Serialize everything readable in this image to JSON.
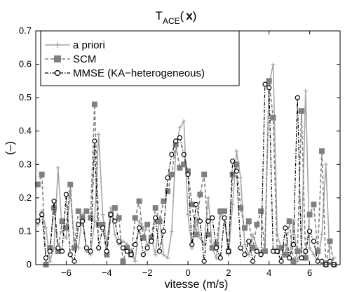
{
  "chart_data": {
    "type": "line",
    "title_main": "T",
    "title_sub": "ACE",
    "title_paren_open": "(",
    "title_var": "x",
    "title_paren_close": ")",
    "xlabel": "vitesse (m/s)",
    "ylabel": "(–)",
    "xlim": [
      -7.5,
      7.5
    ],
    "ylim": [
      0,
      0.7
    ],
    "xticks": [
      -6,
      -4,
      -2,
      0,
      2,
      4,
      6
    ],
    "xtick_labels": [
      "−6",
      "−4",
      "−2",
      "0",
      "2",
      "4",
      "6"
    ],
    "yticks": [
      0,
      0.1,
      0.2,
      0.3,
      0.4,
      0.5,
      0.6,
      0.7
    ],
    "ytick_labels": [
      "0",
      "0.1",
      "0.2",
      "0.3",
      "0.4",
      "0.5",
      "0.6",
      "0.7"
    ],
    "grid": false,
    "legend_position": "top-left",
    "series": [
      {
        "name": "a priori",
        "color": "#a6a6a6",
        "style": "solid",
        "marker": "plus",
        "x": [
          -7.4,
          -7.2,
          -7.0,
          -6.8,
          -6.6,
          -6.4,
          -6.2,
          -6.0,
          -5.8,
          -5.6,
          -5.4,
          -5.2,
          -5.0,
          -4.8,
          -4.6,
          -4.4,
          -4.2,
          -4.0,
          -3.8,
          -3.6,
          -3.4,
          -3.2,
          -3.0,
          -2.8,
          -2.6,
          -2.4,
          -2.2,
          -2.0,
          -1.8,
          -1.6,
          -1.4,
          -1.2,
          -1.0,
          -0.8,
          -0.6,
          -0.4,
          -0.2,
          0.0,
          0.2,
          0.4,
          0.6,
          0.8,
          1.0,
          1.2,
          1.4,
          1.6,
          1.8,
          2.0,
          2.2,
          2.4,
          2.6,
          2.8,
          3.0,
          3.2,
          3.4,
          3.6,
          3.8,
          4.0,
          4.2,
          4.4,
          4.6,
          4.8,
          5.0,
          5.2,
          5.4,
          5.6,
          5.8,
          6.0,
          6.2,
          6.4,
          6.6,
          6.8,
          7.0,
          7.2
        ],
        "y": [
          0.12,
          0.16,
          0.11,
          0.01,
          0.05,
          0.29,
          0.1,
          0.08,
          0.22,
          0.07,
          0.05,
          0.15,
          0.04,
          0.03,
          0.13,
          0.39,
          0.15,
          0.06,
          0.17,
          0.09,
          0.06,
          0.07,
          0.06,
          0.04,
          0.01,
          0.13,
          0.11,
          0.06,
          0.08,
          0.03,
          0.14,
          0.03,
          0.02,
          0.1,
          0.34,
          0.41,
          0.43,
          0.15,
          0.05,
          0.14,
          0.08,
          0.06,
          0.2,
          0.05,
          0.02,
          0.15,
          0.14,
          0.03,
          0.18,
          0.34,
          0.26,
          0.06,
          0.03,
          0.09,
          0.05,
          0.03,
          0.06,
          0.54,
          0.6,
          0.09,
          0.05,
          0.06,
          0.02,
          0.13,
          0.01,
          0.05,
          0.52,
          0.05,
          0.03,
          0.01,
          0.09,
          0.3,
          0.01,
          0.02
        ]
      },
      {
        "name": "SCM",
        "color": "#808080",
        "style": "dashed",
        "marker": "square",
        "x": [
          -7.4,
          -7.2,
          -7.0,
          -6.8,
          -6.6,
          -6.4,
          -6.2,
          -6.0,
          -5.8,
          -5.6,
          -5.4,
          -5.2,
          -5.0,
          -4.8,
          -4.6,
          -4.4,
          -4.2,
          -4.0,
          -3.8,
          -3.6,
          -3.4,
          -3.2,
          -3.0,
          -2.8,
          -2.6,
          -2.4,
          -2.2,
          -2.0,
          -1.8,
          -1.6,
          -1.4,
          -1.2,
          -1.0,
          -0.8,
          -0.6,
          -0.4,
          -0.2,
          0.0,
          0.2,
          0.4,
          0.6,
          0.8,
          1.0,
          1.2,
          1.4,
          1.6,
          1.8,
          2.0,
          2.2,
          2.4,
          2.6,
          2.8,
          3.0,
          3.2,
          3.4,
          3.6,
          3.8,
          4.0,
          4.2,
          4.4,
          4.6,
          4.8,
          5.0,
          5.2,
          5.4,
          5.6,
          5.8,
          6.0,
          6.2,
          6.4,
          6.6,
          6.8,
          7.0,
          7.2
        ],
        "y": [
          0.24,
          0.27,
          0.0,
          0.05,
          0.17,
          0.04,
          0.13,
          0.11,
          0.24,
          0.05,
          0.16,
          0.14,
          0.16,
          0.14,
          0.48,
          0.12,
          0.12,
          0.03,
          0.15,
          0.17,
          0.14,
          0.01,
          0.05,
          0.03,
          0.14,
          0.19,
          0.08,
          0.12,
          0.08,
          0.17,
          0.13,
          0.19,
          0.22,
          0.27,
          0.36,
          0.29,
          0.3,
          0.28,
          0.18,
          0.09,
          0.21,
          0.27,
          0.09,
          0.05,
          0.06,
          0.16,
          0.16,
          0.04,
          0.27,
          0.3,
          0.17,
          0.11,
          0.13,
          0.05,
          0.12,
          0.16,
          0.04,
          0.55,
          0.44,
          0.04,
          0.05,
          0.03,
          0.13,
          0.01,
          0.04,
          0.46,
          0.02,
          0.15,
          0.18,
          0.04,
          0.34,
          0.0,
          0.07,
          0.0
        ]
      },
      {
        "name": "MMSE (KA−heterogeneous)",
        "color": "#000000",
        "style": "dashdot",
        "marker": "circle",
        "x": [
          -7.4,
          -7.2,
          -7.0,
          -6.8,
          -6.6,
          -6.4,
          -6.2,
          -6.0,
          -5.8,
          -5.6,
          -5.4,
          -5.2,
          -5.0,
          -4.8,
          -4.6,
          -4.4,
          -4.2,
          -4.0,
          -3.8,
          -3.6,
          -3.4,
          -3.2,
          -3.0,
          -2.8,
          -2.6,
          -2.4,
          -2.2,
          -2.0,
          -1.8,
          -1.6,
          -1.4,
          -1.2,
          -1.0,
          -0.8,
          -0.6,
          -0.4,
          -0.2,
          0.0,
          0.2,
          0.4,
          0.6,
          0.8,
          1.0,
          1.2,
          1.4,
          1.6,
          1.8,
          2.0,
          2.2,
          2.4,
          2.6,
          2.8,
          3.0,
          3.2,
          3.4,
          3.6,
          3.8,
          4.0,
          4.2,
          4.4,
          4.6,
          4.8,
          5.0,
          5.2,
          5.4,
          5.6,
          5.8,
          6.0,
          6.2,
          6.4,
          6.6,
          6.8,
          7.0,
          7.2
        ],
        "y": [
          0.13,
          0.15,
          0.02,
          0.04,
          0.19,
          0.05,
          0.04,
          0.21,
          0.03,
          0.01,
          0.12,
          0.13,
          0.05,
          0.04,
          0.37,
          0.05,
          0.11,
          0.04,
          0.15,
          0.13,
          0.07,
          0.05,
          0.04,
          0.03,
          0.06,
          0.11,
          0.03,
          0.05,
          0.07,
          0.14,
          0.04,
          0.1,
          0.26,
          0.33,
          0.37,
          0.38,
          0.33,
          0.27,
          0.06,
          0.18,
          0.13,
          0.01,
          0.13,
          0.14,
          0.05,
          0.02,
          0.14,
          0.04,
          0.31,
          0.28,
          0.05,
          0.03,
          0.07,
          0.01,
          0.04,
          0.03,
          0.54,
          0.53,
          0.04,
          0.04,
          0.01,
          0.11,
          0.02,
          0.06,
          0.5,
          0.02,
          0.04,
          0.1,
          0.07,
          0.01,
          0.01,
          0.0,
          0.01,
          0.0
        ]
      }
    ]
  }
}
